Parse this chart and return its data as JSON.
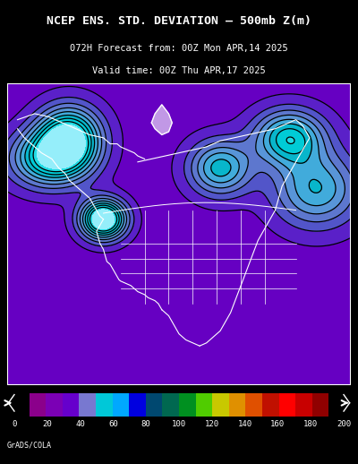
{
  "title_line1": "NCEP ENS. STD. DEVIATION – 500mb Z(m)",
  "title_line2": "072H Forecast from: 00Z Mon APR,14 2025",
  "title_line3": "Valid time: 00Z Thu APR,17 2025",
  "colorbar_ticks": [
    0,
    20,
    40,
    60,
    80,
    100,
    120,
    140,
    160,
    180,
    200
  ],
  "colorbar_colors": [
    "#9b00b5",
    "#7b00c8",
    "#6b00d5",
    "#5a00e0",
    "#7070d0",
    "#00c8c8",
    "#00a0ff",
    "#0000ff",
    "#004060",
    "#006040",
    "#008000",
    "#00c000",
    "#80e000",
    "#c8c800",
    "#e0a000",
    "#e06000",
    "#c02000",
    "#ff0000"
  ],
  "background_color": "#000000",
  "map_background": "#8000a0",
  "map_border_color": "#ffffff",
  "fig_width": 4.0,
  "fig_height": 5.18,
  "dpi": 100,
  "watermark": "GrADS/COLA"
}
